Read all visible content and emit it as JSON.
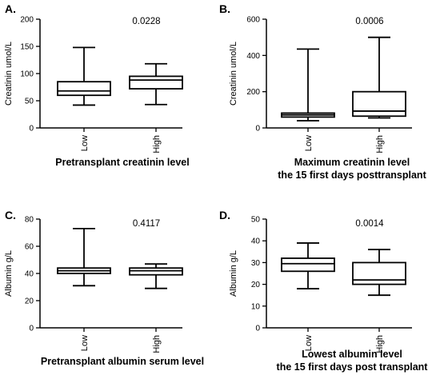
{
  "chart_data": [
    {
      "type": "box",
      "panel_letter": "A.",
      "p_value": "0.0228",
      "ylabel": "Creatinin umol/L",
      "xlabel": [
        "Pretransplant creatinin level"
      ],
      "ylim": [
        0,
        200
      ],
      "yticks": [
        "0",
        "50",
        "100",
        "150",
        "200"
      ],
      "categories": [
        "Low",
        "High"
      ],
      "boxes": [
        {
          "category": "Low",
          "min": 42,
          "q1": 60,
          "median": 68,
          "q3": 85,
          "max": 148
        },
        {
          "category": "High",
          "min": 43,
          "q1": 72,
          "median": 88,
          "q3": 95,
          "max": 118
        }
      ]
    },
    {
      "type": "box",
      "panel_letter": "B.",
      "p_value": "0.0006",
      "ylabel": "Creatinin umol/L",
      "xlabel": [
        "Maximum creatinin level",
        "the 15 first days posttransplant"
      ],
      "ylim": [
        0,
        600
      ],
      "yticks": [
        "0",
        "200",
        "400",
        "600"
      ],
      "categories": [
        "Low",
        "High"
      ],
      "boxes": [
        {
          "category": "Low",
          "min": 40,
          "q1": 60,
          "median": 72,
          "q3": 82,
          "max": 435
        },
        {
          "category": "High",
          "min": 55,
          "q1": 65,
          "median": 93,
          "q3": 200,
          "max": 500
        }
      ]
    },
    {
      "type": "box",
      "panel_letter": "C.",
      "p_value": "0.4117",
      "ylabel": "Albumin g/L",
      "xlabel": [
        "Pretransplant albumin serum level"
      ],
      "ylim": [
        0,
        80
      ],
      "yticks": [
        "0",
        "20",
        "40",
        "60",
        "80"
      ],
      "categories": [
        "Low",
        "High"
      ],
      "boxes": [
        {
          "category": "Low",
          "min": 31,
          "q1": 40,
          "median": 42,
          "q3": 44,
          "max": 73
        },
        {
          "category": "High",
          "min": 29,
          "q1": 39,
          "median": 42,
          "q3": 44,
          "max": 47
        }
      ]
    },
    {
      "type": "box",
      "panel_letter": "D.",
      "p_value": "0.0014",
      "ylabel": "Albumin g/L",
      "xlabel": [
        "Lowest albumin level",
        "the 15 first days post transplant"
      ],
      "ylim": [
        0,
        50
      ],
      "yticks": [
        "0",
        "10",
        "20",
        "30",
        "40",
        "50"
      ],
      "categories": [
        "Low",
        "High"
      ],
      "boxes": [
        {
          "category": "Low",
          "min": 18,
          "q1": 26,
          "median": 29.5,
          "q3": 32,
          "max": 39
        },
        {
          "category": "High",
          "min": 15,
          "q1": 20,
          "median": 22,
          "q3": 30,
          "max": 36
        }
      ]
    }
  ]
}
